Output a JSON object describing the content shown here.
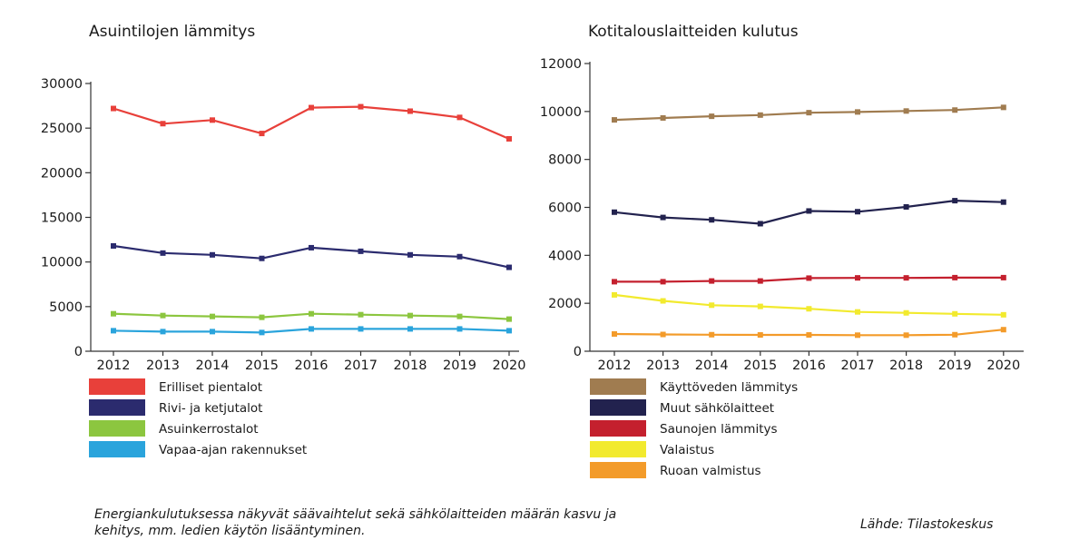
{
  "chart_data": [
    {
      "type": "line",
      "title": "Asuintilojen lämmitys",
      "categories": [
        "2012",
        "2013",
        "2014",
        "2015",
        "2016",
        "2017",
        "2018",
        "2019",
        "2020"
      ],
      "ylim": [
        0,
        30000
      ],
      "yticks": [
        0,
        5000,
        10000,
        15000,
        20000,
        25000,
        30000
      ],
      "series": [
        {
          "name": "Erilliset pientalot",
          "color": "#e8403a",
          "values": [
            27200,
            25500,
            25900,
            24400,
            27300,
            27400,
            26900,
            26200,
            23800
          ]
        },
        {
          "name": "Rivi- ja ketjutalot",
          "color": "#2b2b6e",
          "values": [
            11800,
            11000,
            10800,
            10400,
            11600,
            11200,
            10800,
            10600,
            9400
          ]
        },
        {
          "name": "Asuinkerrostalot",
          "color": "#8cc63f",
          "values": [
            4200,
            4000,
            3900,
            3800,
            4200,
            4100,
            4000,
            3900,
            3600
          ]
        },
        {
          "name": "Vapaa-ajan rakennukset",
          "color": "#2aa4dc",
          "values": [
            2300,
            2200,
            2200,
            2100,
            2500,
            2500,
            2500,
            2500,
            2300
          ]
        }
      ]
    },
    {
      "type": "line",
      "title": "Kotitalouslaitteiden kulutus",
      "categories": [
        "2012",
        "2013",
        "2014",
        "2015",
        "2016",
        "2017",
        "2018",
        "2019",
        "2020"
      ],
      "ylim": [
        0,
        12000
      ],
      "yticks": [
        0,
        2000,
        4000,
        6000,
        8000,
        10000,
        12000
      ],
      "series": [
        {
          "name": "Käyttöveden lämmitys",
          "color": "#a07c50",
          "values": [
            9650,
            9730,
            9800,
            9850,
            9950,
            9980,
            10020,
            10060,
            10170
          ]
        },
        {
          "name": "Muut sähkölaitteet",
          "color": "#22224e",
          "values": [
            5800,
            5580,
            5480,
            5320,
            5850,
            5820,
            6020,
            6280,
            6220
          ]
        },
        {
          "name": "Saunojen lämmitys",
          "color": "#c4202e",
          "values": [
            2900,
            2900,
            2930,
            2930,
            3050,
            3060,
            3060,
            3070,
            3070
          ]
        },
        {
          "name": "Valaistus",
          "color": "#f2ea2e",
          "values": [
            2350,
            2100,
            1920,
            1870,
            1770,
            1640,
            1600,
            1560,
            1520
          ]
        },
        {
          "name": "Ruoan valmistus",
          "color": "#f39b2a",
          "values": [
            720,
            700,
            690,
            680,
            680,
            670,
            670,
            690,
            900
          ]
        }
      ]
    }
  ],
  "note_text": "Energiankulutuksessa näkyvät säävaihtelut sekä sähkölaitteiden määrän kasvu ja kehitys, mm. ledien käytön lisääntyminen.",
  "source_text": "Lähde: Tilastokeskus"
}
